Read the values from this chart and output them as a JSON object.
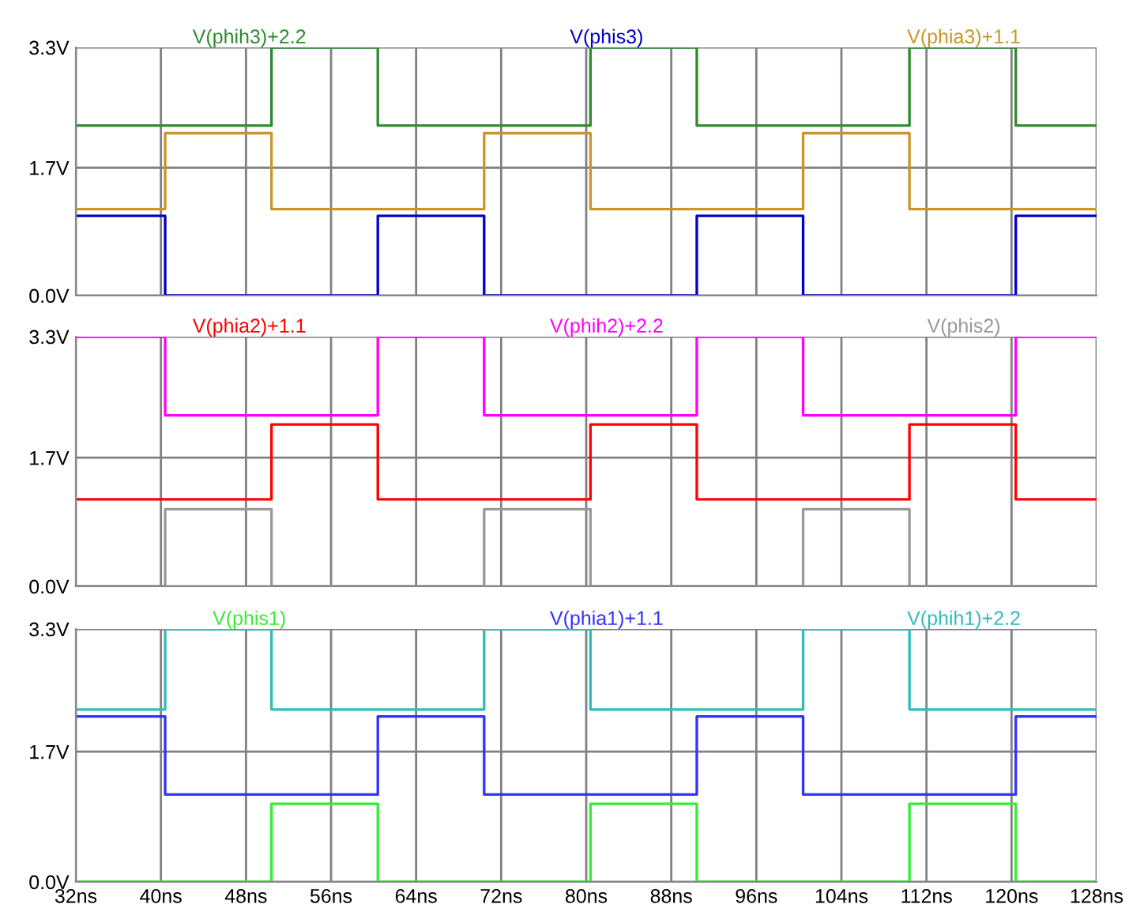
{
  "chart_data": [
    {
      "type": "step",
      "x": [
        32,
        40.4,
        50.4,
        60.4,
        70.4,
        80.4,
        90.4,
        100.4,
        110.4,
        120.4,
        128
      ],
      "xlim": [
        32,
        128
      ],
      "xticks": [
        {
          "value": 32,
          "label": null
        },
        {
          "value": 40,
          "label": null
        },
        {
          "value": 48,
          "label": null
        },
        {
          "value": 56,
          "label": null
        },
        {
          "value": 64,
          "label": null
        },
        {
          "value": 72,
          "label": null
        },
        {
          "value": 80,
          "label": null
        },
        {
          "value": 88,
          "label": null
        },
        {
          "value": 96,
          "label": null
        },
        {
          "value": 104,
          "label": null
        },
        {
          "value": 112,
          "label": null
        },
        {
          "value": 120,
          "label": null
        },
        {
          "value": 128,
          "label": null
        }
      ],
      "ylim": [
        0,
        3.3
      ],
      "yticks": [
        {
          "value": 0,
          "label": "0.0V"
        },
        {
          "value": 1.7,
          "label": "1.7V"
        },
        {
          "value": 3.3,
          "label": "3.3V"
        }
      ],
      "grid": true,
      "legend": "top",
      "tick_labels": "y",
      "series": [
        {
          "name": "V(phih3)+2.2",
          "color": "#2e8b2e",
          "values": [
            2.26,
            2.26,
            3.3,
            2.26,
            2.26,
            3.3,
            2.26,
            2.26,
            3.3,
            2.26,
            2.26
          ]
        },
        {
          "name": "V(phis3)",
          "color": "#0000cc",
          "values": [
            1.06,
            0,
            0,
            1.06,
            0,
            0,
            1.06,
            0,
            0,
            1.06,
            1.06
          ]
        },
        {
          "name": "V(phia3)+1.1",
          "color": "#c8962a",
          "values": [
            1.15,
            2.16,
            1.15,
            1.15,
            2.16,
            1.15,
            1.15,
            2.16,
            1.15,
            1.15,
            1.15
          ]
        }
      ]
    },
    {
      "type": "step",
      "x": [
        32,
        40.4,
        50.4,
        60.4,
        70.4,
        80.4,
        90.4,
        100.4,
        110.4,
        120.4,
        128
      ],
      "xlim": [
        32,
        128
      ],
      "xticks": [
        {
          "value": 32,
          "label": null
        },
        {
          "value": 40,
          "label": null
        },
        {
          "value": 48,
          "label": null
        },
        {
          "value": 56,
          "label": null
        },
        {
          "value": 64,
          "label": null
        },
        {
          "value": 72,
          "label": null
        },
        {
          "value": 80,
          "label": null
        },
        {
          "value": 88,
          "label": null
        },
        {
          "value": 96,
          "label": null
        },
        {
          "value": 104,
          "label": null
        },
        {
          "value": 112,
          "label": null
        },
        {
          "value": 120,
          "label": null
        },
        {
          "value": 128,
          "label": null
        }
      ],
      "ylim": [
        0,
        3.3
      ],
      "yticks": [
        {
          "value": 0,
          "label": "0.0V"
        },
        {
          "value": 1.7,
          "label": "1.7V"
        },
        {
          "value": 3.3,
          "label": "3.3V"
        }
      ],
      "grid": true,
      "legend": "top",
      "tick_labels": "y",
      "series": [
        {
          "name": "V(phia2)+1.1",
          "color": "#ff0000",
          "values": [
            1.15,
            1.15,
            2.14,
            1.15,
            1.15,
            2.14,
            1.15,
            1.15,
            2.14,
            1.15,
            1.15
          ]
        },
        {
          "name": "V(phih2)+2.2",
          "color": "#ff00ff",
          "values": [
            3.3,
            2.26,
            2.26,
            3.3,
            2.26,
            2.26,
            3.3,
            2.26,
            2.26,
            3.3,
            3.3
          ]
        },
        {
          "name": "V(phis2)",
          "color": "#999999",
          "values": [
            0,
            1.02,
            0,
            0,
            1.02,
            0,
            0,
            1.02,
            0,
            0,
            0
          ]
        }
      ]
    },
    {
      "type": "step",
      "x": [
        32,
        40.4,
        50.4,
        60.4,
        70.4,
        80.4,
        90.4,
        100.4,
        110.4,
        120.4,
        128
      ],
      "xlim": [
        32,
        128
      ],
      "xticks": [
        {
          "value": 32,
          "label": "32ns"
        },
        {
          "value": 40,
          "label": "40ns"
        },
        {
          "value": 48,
          "label": "48ns"
        },
        {
          "value": 56,
          "label": "56ns"
        },
        {
          "value": 64,
          "label": "64ns"
        },
        {
          "value": 72,
          "label": "72ns"
        },
        {
          "value": 80,
          "label": "80ns"
        },
        {
          "value": 88,
          "label": "88ns"
        },
        {
          "value": 96,
          "label": "96ns"
        },
        {
          "value": 104,
          "label": "104ns"
        },
        {
          "value": 112,
          "label": "112ns"
        },
        {
          "value": 120,
          "label": "120ns"
        },
        {
          "value": 128,
          "label": "128ns"
        }
      ],
      "ylim": [
        0,
        3.3
      ],
      "yticks": [
        {
          "value": 0,
          "label": "0.0V"
        },
        {
          "value": 1.7,
          "label": "1.7V"
        },
        {
          "value": 3.3,
          "label": "3.3V"
        }
      ],
      "grid": true,
      "legend": "top",
      "series": [
        {
          "name": "V(phis1)",
          "color": "#33ee33",
          "values": [
            0,
            0,
            1.02,
            0,
            0,
            1.02,
            0,
            0,
            1.02,
            0,
            0
          ]
        },
        {
          "name": "V(phia1)+1.1",
          "color": "#3333ff",
          "values": [
            2.16,
            1.14,
            1.14,
            2.16,
            1.14,
            1.14,
            2.16,
            1.14,
            1.14,
            2.16,
            2.16
          ]
        },
        {
          "name": "V(phih1)+2.2",
          "color": "#33bbbb",
          "values": [
            2.25,
            3.3,
            2.25,
            2.25,
            3.3,
            2.25,
            2.25,
            3.3,
            2.25,
            2.25,
            2.25
          ]
        }
      ]
    }
  ]
}
